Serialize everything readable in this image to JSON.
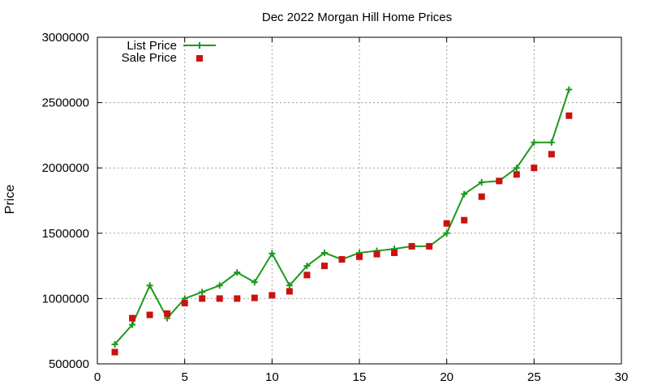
{
  "chart_data": {
    "type": "line",
    "title": "Dec 2022 Morgan Hill Home Prices",
    "xlabel": "",
    "ylabel": "Price",
    "xlim": [
      0,
      30
    ],
    "ylim": [
      500000,
      3000000
    ],
    "xticks": [
      0,
      5,
      10,
      15,
      20,
      25,
      30
    ],
    "yticks": [
      500000,
      1000000,
      1500000,
      2000000,
      2500000,
      3000000
    ],
    "grid": true,
    "legend_position": "top-left",
    "series": [
      {
        "name": "List Price",
        "style": "line-with-plus-markers",
        "color": "#1a9a1a",
        "x": [
          1,
          2,
          3,
          4,
          5,
          6,
          7,
          8,
          9,
          10,
          11,
          12,
          13,
          14,
          15,
          16,
          17,
          18,
          19,
          20,
          21,
          22,
          23,
          24,
          25,
          26,
          27
        ],
        "values": [
          650000,
          800000,
          1100000,
          850000,
          1000000,
          1050000,
          1100000,
          1200000,
          1125000,
          1345000,
          1100000,
          1250000,
          1350000,
          1300000,
          1350000,
          1365000,
          1380000,
          1400000,
          1400000,
          1500000,
          1800000,
          1890000,
          1900000,
          2000000,
          2195000,
          2195000,
          2600000
        ]
      },
      {
        "name": "Sale Price",
        "style": "square-markers",
        "color": "#cc1111",
        "x": [
          1,
          2,
          3,
          4,
          5,
          6,
          7,
          8,
          9,
          10,
          11,
          12,
          13,
          14,
          15,
          16,
          17,
          18,
          19,
          20,
          21,
          22,
          23,
          24,
          25,
          26,
          27
        ],
        "values": [
          590000,
          850000,
          875000,
          885000,
          965000,
          1000000,
          1000000,
          1000000,
          1005000,
          1025000,
          1055000,
          1180000,
          1250000,
          1300000,
          1320000,
          1340000,
          1350000,
          1400000,
          1400000,
          1575000,
          1600000,
          1780000,
          1900000,
          1950000,
          2000000,
          2105000,
          2400000
        ]
      }
    ]
  }
}
